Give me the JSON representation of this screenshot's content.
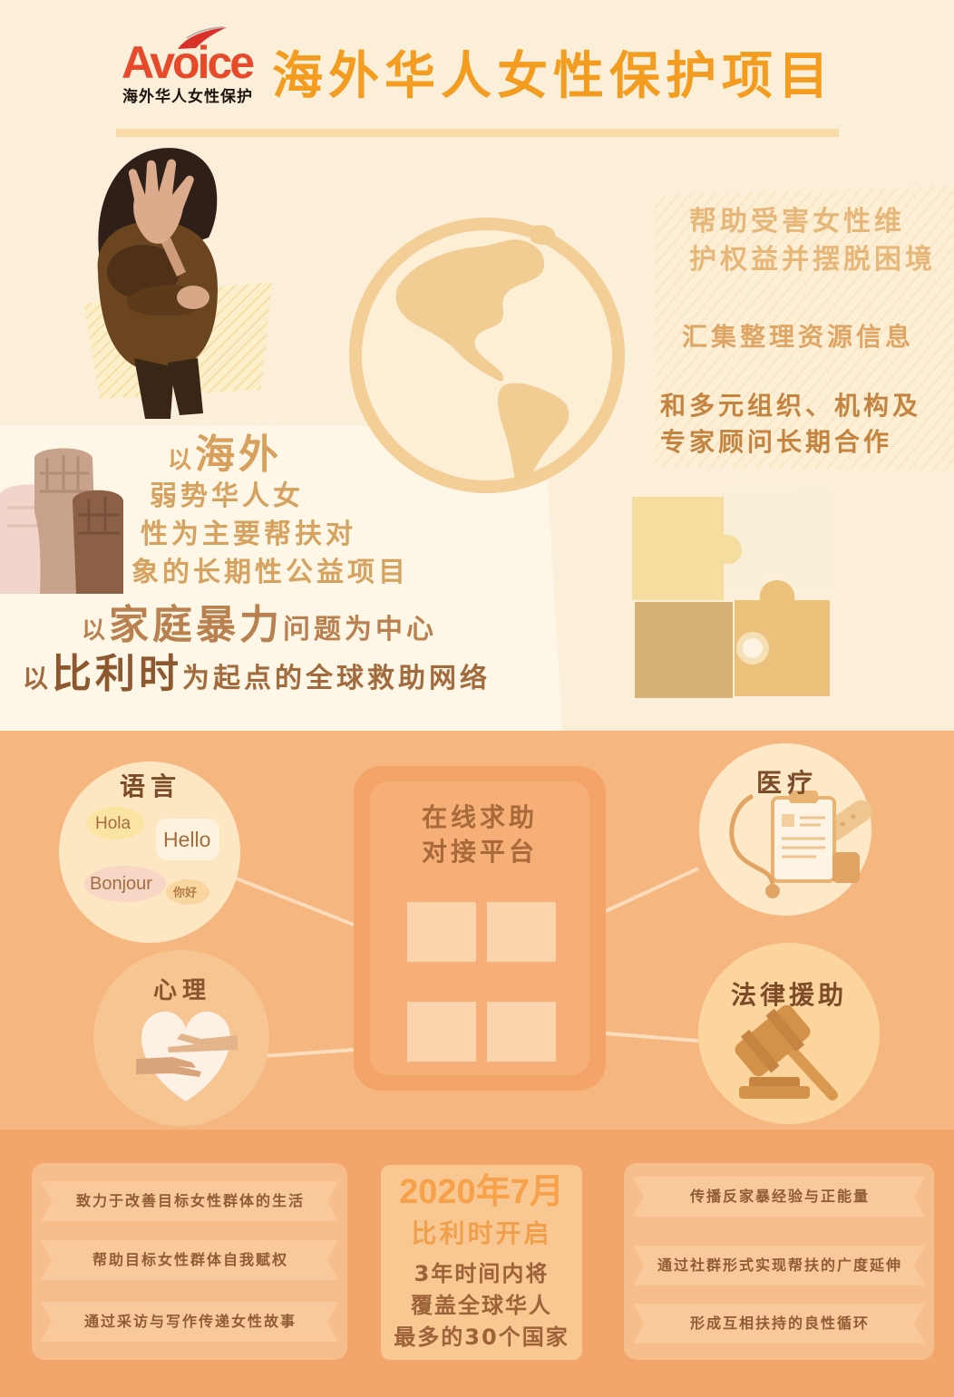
{
  "logo": {
    "wordmark": "Avoice",
    "tagline": "海外华人女性保护"
  },
  "header": {
    "title": "海外华人女性保护项目"
  },
  "mission_right": {
    "lines": [
      "帮助受害女性维",
      "护权益并摆脱困境",
      "汇集整理资源信息",
      "和多元组织、机构及",
      "专家顾问长期合作"
    ]
  },
  "mission_left": {
    "intro": {
      "prefix": "以",
      "emphasis": "海外"
    },
    "lines": [
      "弱势华人女",
      "性为主要帮扶对",
      "象的长期性公益项目"
    ],
    "focus": {
      "prefix": "以",
      "emphasis": "家庭暴力",
      "suffix": "问题为中心"
    },
    "network": {
      "prefix": "以",
      "emphasis": "比利时",
      "suffix": "为起点的全球救助网络"
    }
  },
  "platform": {
    "title_lines": [
      "在线求助",
      "对接平台"
    ]
  },
  "services": {
    "language": {
      "title": "语言",
      "greetings": [
        "Hola",
        "Hello",
        "Bonjour",
        "你好"
      ]
    },
    "psychology": {
      "title": "心理"
    },
    "medical": {
      "title": "医疗"
    },
    "legal": {
      "title": "法律援助"
    }
  },
  "goals_left": [
    "致力于改善目标女性群体的生活",
    "帮助目标女性群体自我赋权",
    "通过采访与写作传递女性故事"
  ],
  "launch": {
    "date": "2020年7月",
    "place": "比利时开启",
    "plan_lines": [
      "3年时间内将",
      "覆盖全球华人",
      "最多的30个国家"
    ]
  },
  "goals_right": [
    "传播反家暴经验与正能量",
    "通过社群形式实现帮扶的广度延伸",
    "形成互相扶持的良性循环"
  ],
  "icons": {
    "woman": "woman-covering-face-icon",
    "globe": "globe-icon",
    "fists": "raised-fists-icon",
    "puzzle": "puzzle-pieces-icon",
    "phone": "phone-platform-icon",
    "heart": "heart-hands-icon",
    "medical": "clipboard-stethoscope-icon",
    "legal": "gavel-icon"
  },
  "colors": {
    "title": "#f39c1f",
    "logo": "#e64a2b",
    "tan": "#d8a05c",
    "brown": "#7c4b28",
    "cream": "#fcefd9",
    "peach": "#f6b680",
    "orange": "#f3a66b"
  }
}
